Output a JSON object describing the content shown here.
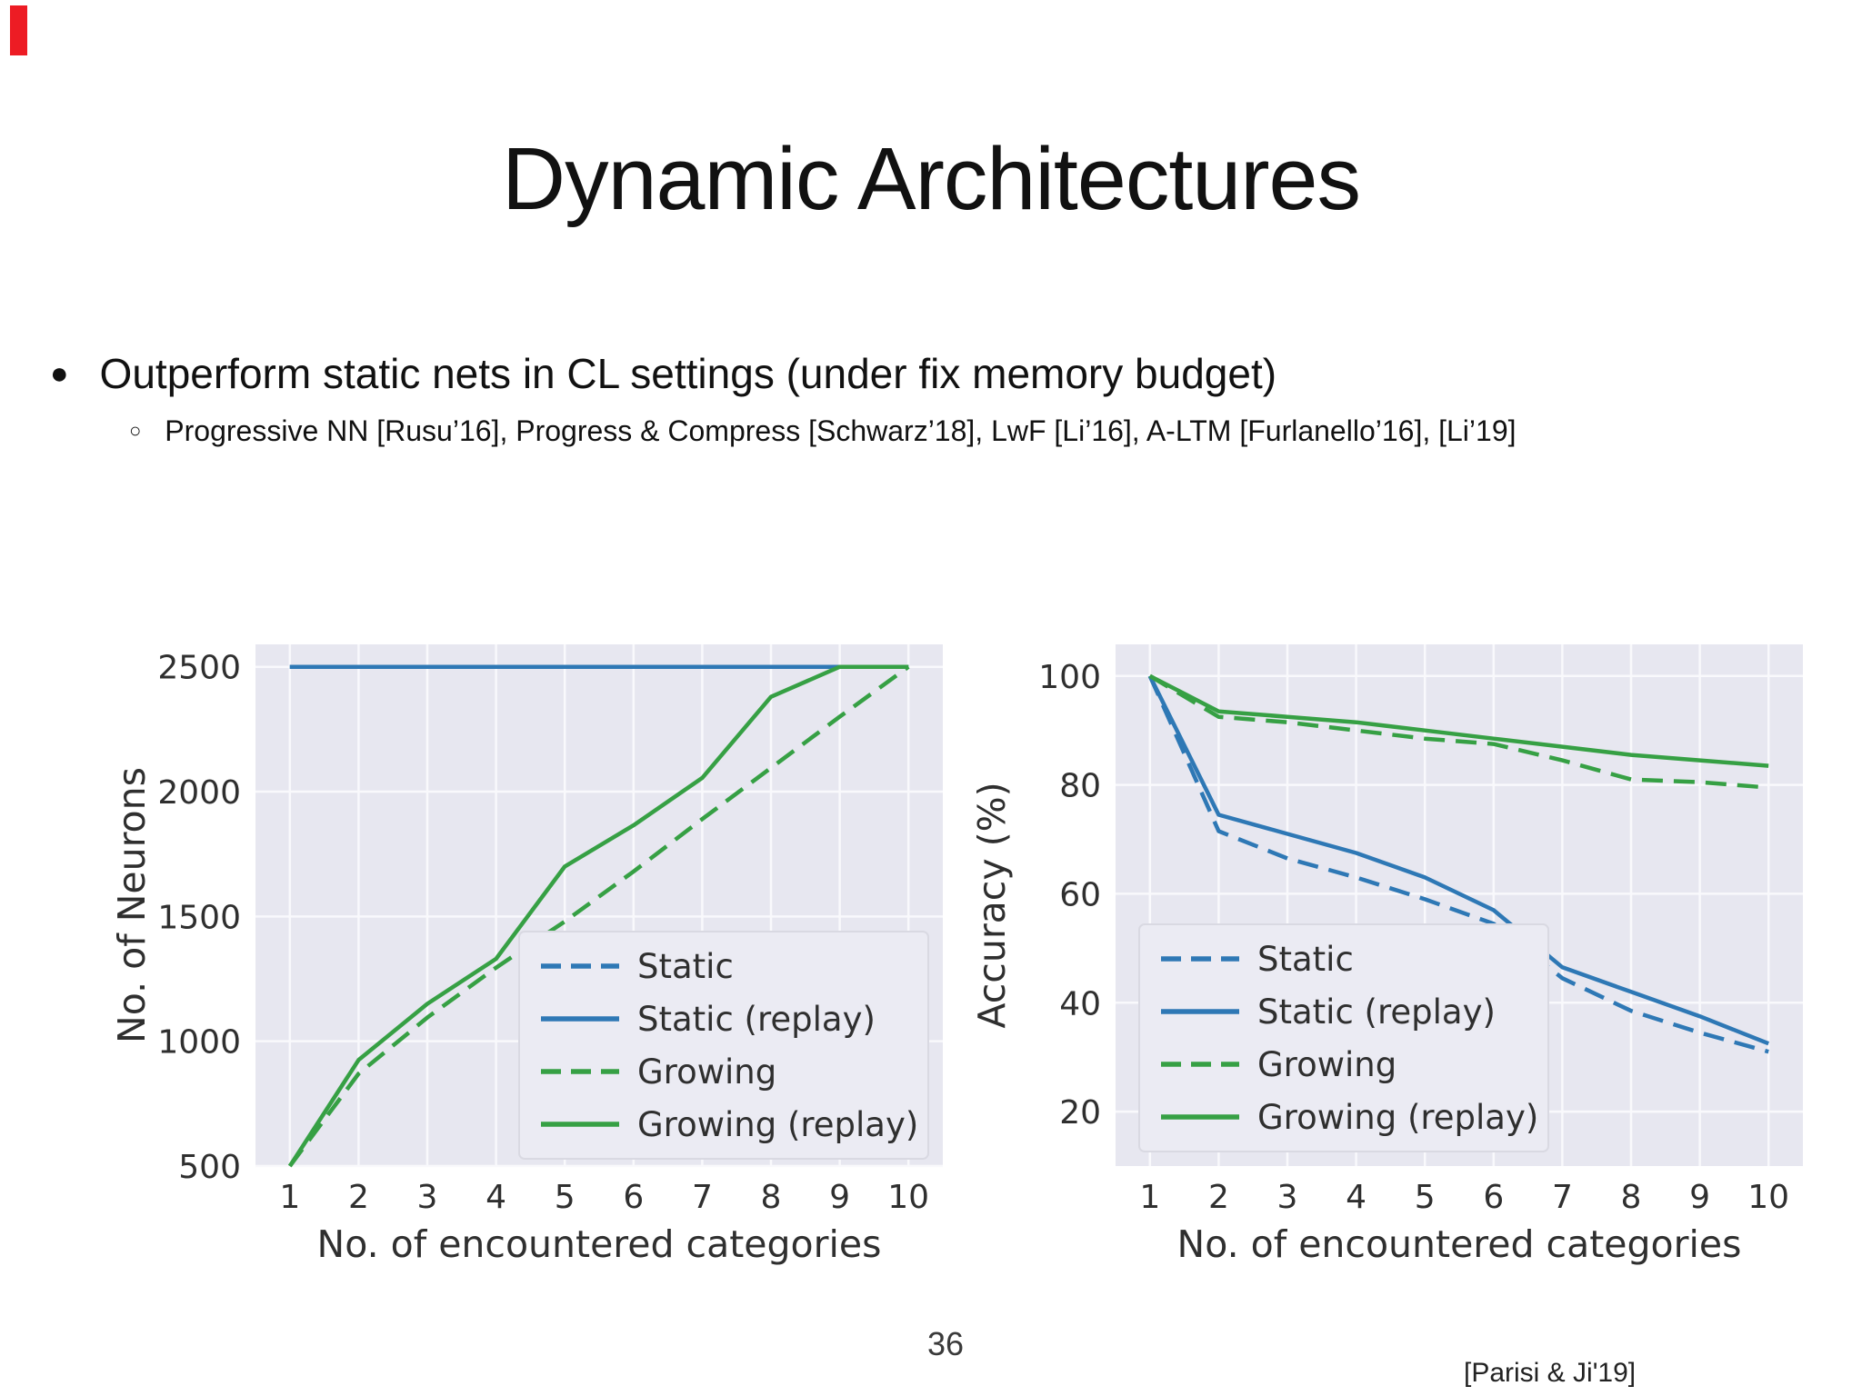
{
  "slide": {
    "title": "Dynamic Architectures",
    "bullet_glyph": "●",
    "bullet": "Outperform static nets in CL settings (under fix memory budget)",
    "sub_bullet_glyph": "○",
    "sub_bullet": "Progressive NN [Rusu’16], Progress & Compress [Schwarz’18], LwF [Li’16], A-LTM [Furlanello’16], [Li’19]",
    "page_number": "36",
    "citation": "[Parisi & Ji'19]",
    "accent_red": "#ed1c24"
  },
  "chart_style": {
    "plot_bg": "#e7e7f0",
    "grid_color": "#f9f9fc",
    "text_color": "#2f2f2f",
    "legend_bg": "#ebebf3",
    "legend_border": "#d9d9e2",
    "blue": "#2e78b5",
    "green": "#36a044"
  },
  "chart_data": [
    {
      "type": "line",
      "title": "",
      "xlabel": "No. of encountered categories",
      "ylabel": "No. of Neurons",
      "x": [
        1,
        2,
        3,
        4,
        5,
        6,
        7,
        8,
        9,
        10
      ],
      "xlim": [
        0.5,
        10.5
      ],
      "ylim": [
        500,
        2590
      ],
      "yticks": [
        500,
        1000,
        1500,
        2000,
        2500
      ],
      "grid": true,
      "legend_loc": "lower right",
      "series": [
        {
          "name": "Static",
          "color": "#2e78b5",
          "dash": true,
          "values": [
            2500,
            2500,
            2500,
            2500,
            2500,
            2500,
            2500,
            2500,
            2500,
            2500
          ]
        },
        {
          "name": "Static (replay)",
          "color": "#2e78b5",
          "dash": false,
          "values": [
            2500,
            2500,
            2500,
            2500,
            2500,
            2500,
            2500,
            2500,
            2500,
            2500
          ]
        },
        {
          "name": "Growing",
          "color": "#36a044",
          "dash": true,
          "values": [
            500,
            870,
            1095,
            1295,
            1480,
            1680,
            1890,
            2095,
            2300,
            2500
          ]
        },
        {
          "name": "Growing (replay)",
          "color": "#36a044",
          "dash": false,
          "values": [
            500,
            925,
            1150,
            1330,
            1700,
            1865,
            2055,
            2380,
            2500,
            2500
          ]
        }
      ]
    },
    {
      "type": "line",
      "title": "",
      "xlabel": "No. of encountered categories",
      "ylabel": "Accuracy (%)",
      "x": [
        1,
        2,
        3,
        4,
        5,
        6,
        7,
        8,
        9,
        10
      ],
      "xlim": [
        0.5,
        10.5
      ],
      "ylim": [
        10,
        105.8
      ],
      "yticks": [
        20,
        40,
        60,
        80,
        100
      ],
      "grid": true,
      "legend_loc": "lower left",
      "series": [
        {
          "name": "Static",
          "color": "#2e78b5",
          "dash": true,
          "values": [
            100,
            71.5,
            66.5,
            63,
            59,
            54.5,
            44.5,
            38.5,
            34.5,
            31
          ]
        },
        {
          "name": "Static (replay)",
          "color": "#2e78b5",
          "dash": false,
          "values": [
            100,
            74.5,
            71,
            67.5,
            63,
            57,
            46.5,
            42,
            37.5,
            32.5
          ]
        },
        {
          "name": "Growing",
          "color": "#36a044",
          "dash": true,
          "values": [
            100,
            92.5,
            91.5,
            90,
            88.5,
            87.5,
            84.5,
            81,
            80.5,
            79.5
          ]
        },
        {
          "name": "Growing (replay)",
          "color": "#36a044",
          "dash": false,
          "values": [
            100,
            93.5,
            92.5,
            91.5,
            90,
            88.5,
            87,
            85.5,
            84.5,
            83.5
          ]
        }
      ]
    }
  ]
}
